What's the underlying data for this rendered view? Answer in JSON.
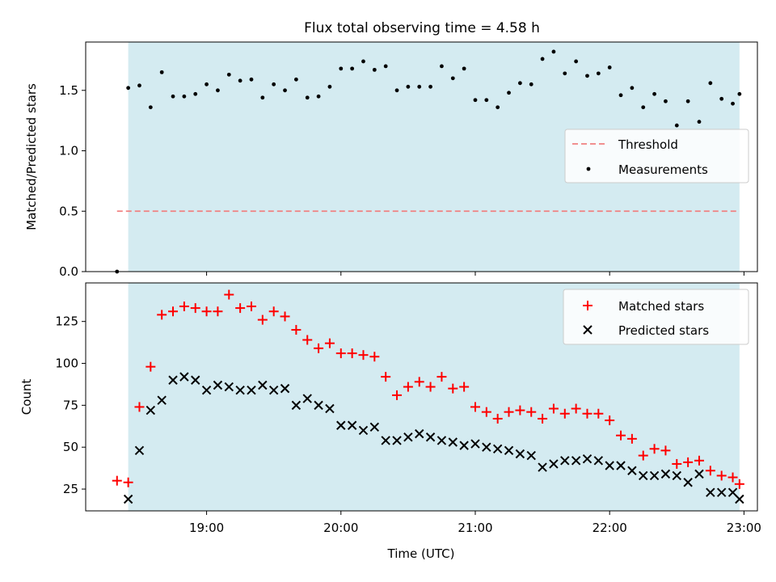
{
  "title": "Flux total observing time = 4.58 h",
  "chart_data": [
    {
      "type": "scatter",
      "panel": "top",
      "ylabel": "Matched/Predicted stars",
      "ylim": [
        0,
        1.9
      ],
      "yticks": [
        0.0,
        0.5,
        1.0,
        1.5
      ],
      "ytick_labels": [
        "0.0",
        "0.5",
        "1.0",
        "1.5"
      ],
      "shaded_span": {
        "x_start": "18:25",
        "x_end": "22:58",
        "color": "#d4ebf1"
      },
      "threshold": {
        "name": "Threshold",
        "value": 0.5,
        "color": "#f08080",
        "style": "dashed"
      },
      "legend_location": "center-right",
      "series": [
        {
          "name": "Measurements",
          "marker": "dot",
          "color": "#000000",
          "x": [
            "18:20",
            "18:25",
            "18:30",
            "18:35",
            "18:40",
            "18:45",
            "18:50",
            "18:55",
            "19:00",
            "19:05",
            "19:10",
            "19:15",
            "19:20",
            "19:25",
            "19:30",
            "19:35",
            "19:40",
            "19:45",
            "19:50",
            "19:55",
            "20:00",
            "20:05",
            "20:10",
            "20:15",
            "20:20",
            "20:25",
            "20:30",
            "20:35",
            "20:40",
            "20:45",
            "20:50",
            "20:55",
            "21:00",
            "21:05",
            "21:10",
            "21:15",
            "21:20",
            "21:25",
            "21:30",
            "21:35",
            "21:40",
            "21:45",
            "21:50",
            "21:55",
            "22:00",
            "22:05",
            "22:10",
            "22:15",
            "22:20",
            "22:25",
            "22:30",
            "22:35",
            "22:40",
            "22:45",
            "22:50",
            "22:55",
            "22:58"
          ],
          "y": [
            0.0,
            1.52,
            1.54,
            1.36,
            1.65,
            1.45,
            1.45,
            1.47,
            1.55,
            1.5,
            1.63,
            1.58,
            1.59,
            1.44,
            1.55,
            1.5,
            1.59,
            1.44,
            1.45,
            1.53,
            1.68,
            1.68,
            1.74,
            1.67,
            1.7,
            1.5,
            1.53,
            1.53,
            1.53,
            1.7,
            1.6,
            1.68,
            1.42,
            1.42,
            1.36,
            1.48,
            1.56,
            1.55,
            1.76,
            1.82,
            1.64,
            1.74,
            1.62,
            1.64,
            1.69,
            1.46,
            1.52,
            1.36,
            1.47,
            1.41,
            1.21,
            1.41,
            1.24,
            1.56,
            1.43,
            1.39,
            1.47
          ]
        }
      ]
    },
    {
      "type": "scatter",
      "panel": "bottom",
      "xlabel": "Time (UTC)",
      "ylabel": "Count",
      "ylim": [
        12,
        148
      ],
      "yticks": [
        25,
        50,
        75,
        100,
        125
      ],
      "ytick_labels": [
        "25",
        "50",
        "75",
        "100",
        "125"
      ],
      "xtick_labels": [
        "19:00",
        "20:00",
        "21:00",
        "22:00",
        "23:00"
      ],
      "xticks": [
        "19:00",
        "20:00",
        "21:00",
        "22:00",
        "23:00"
      ],
      "xlim": [
        "18:06",
        "23:06"
      ],
      "shaded_span": {
        "x_start": "18:25",
        "x_end": "22:58",
        "color": "#d4ebf1"
      },
      "legend_location": "top-right",
      "series": [
        {
          "name": "Matched stars",
          "marker": "plus",
          "color": "#ff0000",
          "x": [
            "18:20",
            "18:25",
            "18:30",
            "18:35",
            "18:40",
            "18:45",
            "18:50",
            "18:55",
            "19:00",
            "19:05",
            "19:10",
            "19:15",
            "19:20",
            "19:25",
            "19:30",
            "19:35",
            "19:40",
            "19:45",
            "19:50",
            "19:55",
            "20:00",
            "20:05",
            "20:10",
            "20:15",
            "20:20",
            "20:25",
            "20:30",
            "20:35",
            "20:40",
            "20:45",
            "20:50",
            "20:55",
            "21:00",
            "21:05",
            "21:10",
            "21:15",
            "21:20",
            "21:25",
            "21:30",
            "21:35",
            "21:40",
            "21:45",
            "21:50",
            "21:55",
            "22:00",
            "22:05",
            "22:10",
            "22:15",
            "22:20",
            "22:25",
            "22:30",
            "22:35",
            "22:40",
            "22:45",
            "22:50",
            "22:55",
            "22:58"
          ],
          "y": [
            30,
            29,
            74,
            98,
            129,
            131,
            134,
            133,
            131,
            131,
            141,
            133,
            134,
            126,
            131,
            128,
            120,
            114,
            109,
            112,
            106,
            106,
            105,
            104,
            92,
            81,
            86,
            89,
            86,
            92,
            85,
            86,
            74,
            71,
            67,
            71,
            72,
            71,
            67,
            73,
            70,
            73,
            70,
            70,
            66,
            57,
            55,
            45,
            49,
            48,
            40,
            41,
            42,
            36,
            33,
            32,
            28
          ]
        },
        {
          "name": "Predicted stars",
          "marker": "x",
          "color": "#000000",
          "x": [
            "18:25",
            "18:30",
            "18:35",
            "18:40",
            "18:45",
            "18:50",
            "18:55",
            "19:00",
            "19:05",
            "19:10",
            "19:15",
            "19:20",
            "19:25",
            "19:30",
            "19:35",
            "19:40",
            "19:45",
            "19:50",
            "19:55",
            "20:00",
            "20:05",
            "20:10",
            "20:15",
            "20:20",
            "20:25",
            "20:30",
            "20:35",
            "20:40",
            "20:45",
            "20:50",
            "20:55",
            "21:00",
            "21:05",
            "21:10",
            "21:15",
            "21:20",
            "21:25",
            "21:30",
            "21:35",
            "21:40",
            "21:45",
            "21:50",
            "21:55",
            "22:00",
            "22:05",
            "22:10",
            "22:15",
            "22:20",
            "22:25",
            "22:30",
            "22:35",
            "22:40",
            "22:45",
            "22:50",
            "22:55",
            "22:58"
          ],
          "y": [
            19,
            48,
            72,
            78,
            90,
            92,
            90,
            84,
            87,
            86,
            84,
            84,
            87,
            84,
            85,
            75,
            79,
            75,
            73,
            63,
            63,
            60,
            62,
            54,
            54,
            56,
            58,
            56,
            54,
            53,
            51,
            52,
            50,
            49,
            48,
            46,
            45,
            38,
            40,
            42,
            42,
            43,
            42,
            39,
            39,
            36,
            33,
            33,
            34,
            33,
            29,
            34,
            23,
            23,
            23,
            19
          ]
        }
      ]
    }
  ]
}
